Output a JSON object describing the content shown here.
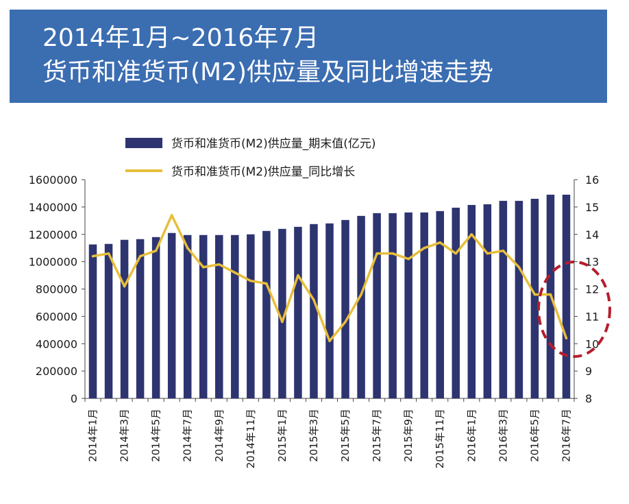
{
  "header": {
    "title_line1": "2014年1月~2016年7月",
    "title_line2": "货币和准货币(M2)供应量及同比增速走势"
  },
  "colors": {
    "banner": "#3b6db1",
    "bars": "#2e3470",
    "line": "#e7be3b",
    "highlight": "#b51e2c"
  },
  "chart_data": {
    "type": "bar+line",
    "categories": [
      "2014年1月",
      "2014年2月",
      "2014年3月",
      "2014年4月",
      "2014年5月",
      "2014年6月",
      "2014年7月",
      "2014年8月",
      "2014年9月",
      "2014年10月",
      "2014年11月",
      "2014年12月",
      "2015年1月",
      "2015年2月",
      "2015年3月",
      "2015年4月",
      "2015年5月",
      "2015年6月",
      "2015年7月",
      "2015年8月",
      "2015年9月",
      "2015年10月",
      "2015年11月",
      "2015年12月",
      "2016年1月",
      "2016年2月",
      "2016年3月",
      "2016年4月",
      "2016年5月",
      "2016年6月",
      "2016年7月"
    ],
    "tick_labels": [
      "2014年1月",
      "2014年3月",
      "2014年5月",
      "2014年7月",
      "2014年9月",
      "2014年11月",
      "2015年1月",
      "2015年3月",
      "2015年5月",
      "2015年7月",
      "2015年9月",
      "2015年11月",
      "2016年1月",
      "2016年3月",
      "2016年5月",
      "2016年7月"
    ],
    "series": [
      {
        "name": "货币和准货币(M2)供应量_期末值(亿元)",
        "type": "bar",
        "axis": "left",
        "values": [
          1126000,
          1130000,
          1160000,
          1165000,
          1180000,
          1210000,
          1195000,
          1195000,
          1195000,
          1195000,
          1200000,
          1225000,
          1240000,
          1255000,
          1275000,
          1280000,
          1305000,
          1335000,
          1355000,
          1355000,
          1360000,
          1360000,
          1370000,
          1395000,
          1415000,
          1420000,
          1445000,
          1445000,
          1460000,
          1490000,
          1490000
        ]
      },
      {
        "name": "货币和准货币(M2)供应量_同比增长",
        "type": "line",
        "axis": "right",
        "values": [
          13.2,
          13.3,
          12.1,
          13.2,
          13.4,
          14.7,
          13.5,
          12.8,
          12.9,
          12.6,
          12.3,
          12.2,
          10.8,
          12.5,
          11.6,
          10.1,
          10.8,
          11.8,
          13.3,
          13.3,
          13.1,
          13.5,
          13.7,
          13.3,
          14.0,
          13.3,
          13.4,
          12.8,
          11.8,
          11.8,
          10.2
        ]
      }
    ],
    "y_left": {
      "min": 0,
      "max": 1600000,
      "ticks": [
        "0",
        "200000",
        "400000",
        "600000",
        "800000",
        "1000000",
        "1200000",
        "1400000",
        "1600000"
      ]
    },
    "y_right": {
      "min": 8,
      "max": 16,
      "ticks": [
        "8",
        "9",
        "10",
        "11",
        "12",
        "13",
        "14",
        "15",
        "16"
      ]
    },
    "legend": {
      "position": "top-center"
    },
    "annotation": "dashed ellipse highlighting 2016年5月–2016年7月"
  }
}
